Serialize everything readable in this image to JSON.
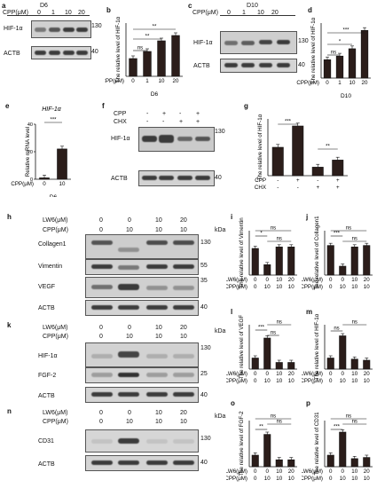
{
  "panels": {
    "a": {
      "letter": "a",
      "title": "D6",
      "cpp_label": "CPP(μM)",
      "cpp": [
        "0",
        "1",
        "10",
        "20"
      ],
      "rows": [
        "HIF-1α",
        "ACTB"
      ],
      "mw": [
        "130",
        "40"
      ]
    },
    "b": {
      "letter": "b",
      "ylabel": "The relative level of HIF-1α",
      "xlabel": "CPP(μM)",
      "x": [
        "0",
        "1",
        "10",
        "20"
      ],
      "day": "D6",
      "sig": [
        "ns",
        "**",
        "**"
      ]
    },
    "c": {
      "letter": "c",
      "title": "D10",
      "cpp_label": "CPP(μM)",
      "cpp": [
        "0",
        "1",
        "10",
        "20"
      ],
      "rows": [
        "HIF-1α",
        "ACTB"
      ],
      "mw": [
        "130",
        "40"
      ]
    },
    "d": {
      "letter": "d",
      "ylabel": "The relative level of HIF-1α",
      "xlabel": "CPP(μM)",
      "x": [
        "0",
        "1",
        "10",
        "20"
      ],
      "day": "D10",
      "sig": [
        "ns",
        "*",
        "***"
      ]
    },
    "e": {
      "letter": "e",
      "title": "HIF-1α",
      "ylabel": "Relative mRNA level",
      "xlabel": "CPP(μM)",
      "x": [
        "0",
        "10"
      ],
      "day": "D6",
      "sig": "***",
      "ticks": [
        "0",
        "20",
        "40"
      ]
    },
    "f": {
      "letter": "f",
      "rows": [
        "HIF-1α",
        "ACTB"
      ],
      "treat": [
        "CPP",
        "CHX"
      ],
      "cpp": [
        "-",
        "+",
        "-",
        "+"
      ],
      "chx": [
        "-",
        "-",
        "+",
        "+"
      ],
      "mw": [
        "130",
        "40"
      ]
    },
    "g": {
      "letter": "g",
      "ylabel": "The relative level of HIF-1α",
      "treat": [
        "CPP",
        "CHX"
      ],
      "cpp": [
        "-",
        "+",
        "-",
        "+"
      ],
      "chx": [
        "-",
        "-",
        "+",
        "+"
      ],
      "sig": [
        "***",
        "**"
      ]
    },
    "h": {
      "letter": "h",
      "lw6_label": "LW6(μM)",
      "cpp_label": "CPP(μM)",
      "lw6": [
        "0",
        "0",
        "10",
        "20"
      ],
      "cpp": [
        "0",
        "10",
        "10",
        "10"
      ],
      "rows": [
        "Collagen1",
        "Vimentin",
        "VEGF",
        "ACTB"
      ],
      "mw": [
        "130",
        "55",
        "35",
        "40"
      ],
      "kda": "kDa"
    },
    "i": {
      "letter": "i",
      "ylabel": "The relative level of Vimentin",
      "sig": [
        "ns",
        "*",
        "ns"
      ]
    },
    "j": {
      "letter": "j",
      "ylabel": "The relative level of Collagen1",
      "sig": [
        "ns",
        "***",
        "ns"
      ]
    },
    "k": {
      "letter": "k",
      "lw6_label": "LW6(μM)",
      "cpp_label": "CPP(μM)",
      "lw6": [
        "0",
        "0",
        "10",
        "20"
      ],
      "cpp": [
        "0",
        "10",
        "10",
        "10"
      ],
      "rows": [
        "HIF-1α",
        "FGF-2",
        "ACTB"
      ],
      "mw": [
        "130",
        "25",
        "40"
      ],
      "kda": "kDa"
    },
    "l": {
      "letter": "l",
      "ylabel": "The relative level of VEGF",
      "sig": [
        "ns",
        "***",
        "ns"
      ]
    },
    "m": {
      "letter": "m",
      "ylabel": "The relative level of HIF-1α",
      "sig": [
        "ns",
        "ns"
      ]
    },
    "n": {
      "letter": "n",
      "lw6_label": "LW6(μM)",
      "cpp_label": "CPP(μM)",
      "lw6": [
        "0",
        "0",
        "10",
        "20"
      ],
      "cpp": [
        "0",
        "10",
        "10",
        "10"
      ],
      "rows": [
        "CD31",
        "ACTB"
      ],
      "mw": [
        "130",
        "40"
      ],
      "kda": "kDa"
    },
    "o": {
      "letter": "o",
      "ylabel": "The relative level of FGF-2",
      "sig": [
        "ns",
        "ns",
        "**"
      ]
    },
    "p": {
      "letter": "p",
      "ylabel": "The relative level of CD31",
      "sig": [
        "ns",
        "ns",
        "***"
      ]
    }
  },
  "common": {
    "lw6_label": "LW6(μM)",
    "cpp_label": "CPP(μM)",
    "lw6": [
      "0",
      "0",
      "10",
      "20"
    ],
    "cpp": [
      "0",
      "10",
      "10",
      "10"
    ]
  },
  "chart_data": [
    {
      "panel": "b",
      "type": "bar",
      "categories": [
        "0",
        "1",
        "10",
        "20"
      ],
      "values": [
        1.0,
        1.4,
        2.0,
        2.3
      ],
      "ylim": [
        0,
        3
      ]
    },
    {
      "panel": "d",
      "type": "bar",
      "categories": [
        "0",
        "1",
        "10",
        "20"
      ],
      "values": [
        1.0,
        1.2,
        1.6,
        2.6
      ],
      "ylim": [
        0,
        3
      ]
    },
    {
      "panel": "e",
      "type": "bar",
      "categories": [
        "0",
        "10"
      ],
      "values": [
        1,
        22
      ],
      "ylim": [
        0,
        40
      ]
    },
    {
      "panel": "g",
      "type": "bar",
      "categories": [
        "1",
        "2",
        "3",
        "4"
      ],
      "values": [
        1.0,
        1.75,
        0.3,
        0.55
      ],
      "ylim": [
        0,
        2
      ]
    },
    {
      "panel": "i",
      "type": "bar",
      "categories": [
        "1",
        "2",
        "3",
        "4"
      ],
      "values": [
        0.9,
        0.35,
        0.95,
        0.95
      ],
      "ylim": [
        0,
        1.5
      ]
    },
    {
      "panel": "j",
      "type": "bar",
      "categories": [
        "1",
        "2",
        "3",
        "4"
      ],
      "values": [
        1.0,
        0.3,
        0.95,
        1.0
      ],
      "ylim": [
        0,
        1.5
      ]
    },
    {
      "panel": "l",
      "type": "bar",
      "categories": [
        "1",
        "2",
        "3",
        "4"
      ],
      "values": [
        1.0,
        2.8,
        0.6,
        0.6
      ],
      "ylim": [
        0,
        4
      ]
    },
    {
      "panel": "m",
      "type": "bar",
      "categories": [
        "1",
        "2",
        "3",
        "4"
      ],
      "values": [
        1.0,
        3.0,
        0.9,
        0.8
      ],
      "ylim": [
        0,
        4
      ]
    },
    {
      "panel": "o",
      "type": "bar",
      "categories": [
        "1",
        "2",
        "3",
        "4"
      ],
      "values": [
        1.0,
        2.8,
        0.6,
        0.6
      ],
      "ylim": [
        0,
        4
      ]
    },
    {
      "panel": "p",
      "type": "bar",
      "categories": [
        "1",
        "2",
        "3",
        "4"
      ],
      "values": [
        1.0,
        3.0,
        0.7,
        0.8
      ],
      "ylim": [
        0,
        4
      ]
    }
  ]
}
